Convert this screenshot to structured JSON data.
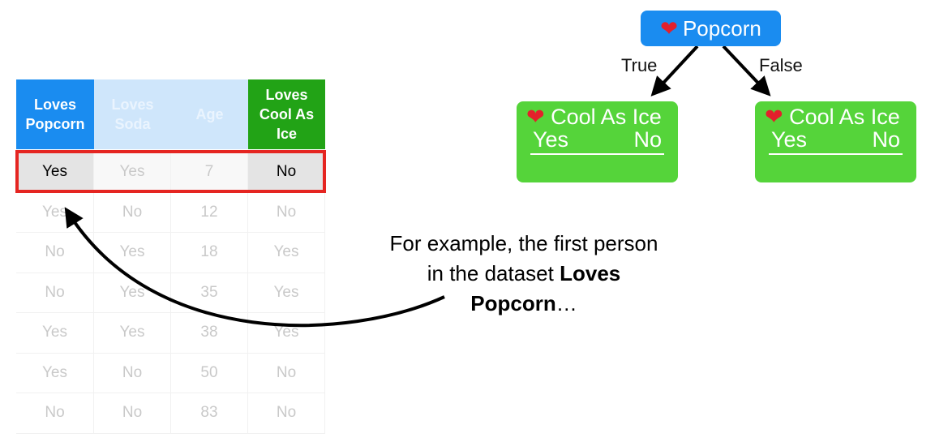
{
  "table": {
    "headers": [
      "Loves Popcorn",
      "Loves Soda",
      "Age",
      "Loves Cool As Ice"
    ],
    "rows": [
      [
        "Yes",
        "Yes",
        "7",
        "No"
      ],
      [
        "Yes",
        "No",
        "12",
        "No"
      ],
      [
        "No",
        "Yes",
        "18",
        "Yes"
      ],
      [
        "No",
        "Yes",
        "35",
        "Yes"
      ],
      [
        "Yes",
        "Yes",
        "38",
        "Yes"
      ],
      [
        "Yes",
        "No",
        "50",
        "No"
      ],
      [
        "No",
        "No",
        "83",
        "No"
      ]
    ],
    "colors": {
      "popcorn_header": "#1a8cf0",
      "faded_header": "#cfe6fb",
      "target_header": "#22a316",
      "highlight": "#e52521"
    }
  },
  "tree": {
    "root": {
      "icon": "heart-icon",
      "label": "Popcorn"
    },
    "true_label": "True",
    "false_label": "False",
    "leaves": [
      {
        "icon": "heart-icon",
        "label": "Cool As Ice",
        "yes": "Yes",
        "no": "No"
      },
      {
        "icon": "heart-icon",
        "label": "Cool As Ice",
        "yes": "Yes",
        "no": "No"
      }
    ],
    "colors": {
      "root": "#1a8cf0",
      "leaf": "#55d43a"
    }
  },
  "annotation": {
    "line1": "For example, the first person",
    "line2_plain": "in the dataset ",
    "line2_bold": "Loves",
    "line3_bold": "Popcorn",
    "line3_plain": "…"
  }
}
